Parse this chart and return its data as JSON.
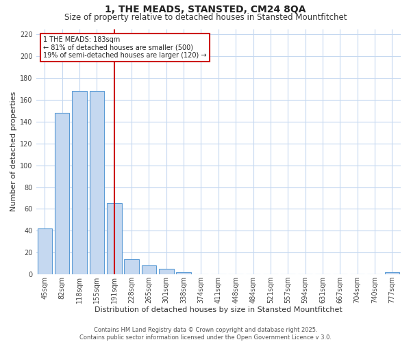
{
  "title": "1, THE MEADS, STANSTED, CM24 8QA",
  "subtitle": "Size of property relative to detached houses in Stansted Mountfitchet",
  "xlabel": "Distribution of detached houses by size in Stansted Mountfitchet",
  "ylabel": "Number of detached properties",
  "categories": [
    "45sqm",
    "82sqm",
    "118sqm",
    "155sqm",
    "191sqm",
    "228sqm",
    "265sqm",
    "301sqm",
    "338sqm",
    "374sqm",
    "411sqm",
    "448sqm",
    "484sqm",
    "521sqm",
    "557sqm",
    "594sqm",
    "631sqm",
    "667sqm",
    "704sqm",
    "740sqm",
    "777sqm"
  ],
  "values": [
    42,
    148,
    168,
    168,
    65,
    14,
    8,
    5,
    2,
    0,
    0,
    0,
    0,
    0,
    0,
    0,
    0,
    0,
    0,
    0,
    2
  ],
  "bar_color": "#c5d8f0",
  "bar_edge_color": "#5b9bd5",
  "vline_x": 4,
  "vline_color": "#cc0000",
  "annotation_text": "1 THE MEADS: 183sqm\n← 81% of detached houses are smaller (500)\n19% of semi-detached houses are larger (120) →",
  "annotation_box_color": "#cc0000",
  "ylim": [
    0,
    225
  ],
  "yticks": [
    0,
    20,
    40,
    60,
    80,
    100,
    120,
    140,
    160,
    180,
    200,
    220
  ],
  "footer": "Contains HM Land Registry data © Crown copyright and database right 2025.\nContains public sector information licensed under the Open Government Licence v 3.0.",
  "bg_color": "#ffffff",
  "grid_color": "#c5d8f0",
  "title_fontsize": 10,
  "subtitle_fontsize": 8.5,
  "label_fontsize": 8,
  "tick_fontsize": 7,
  "footer_fontsize": 6,
  "annotation_fontsize": 7
}
